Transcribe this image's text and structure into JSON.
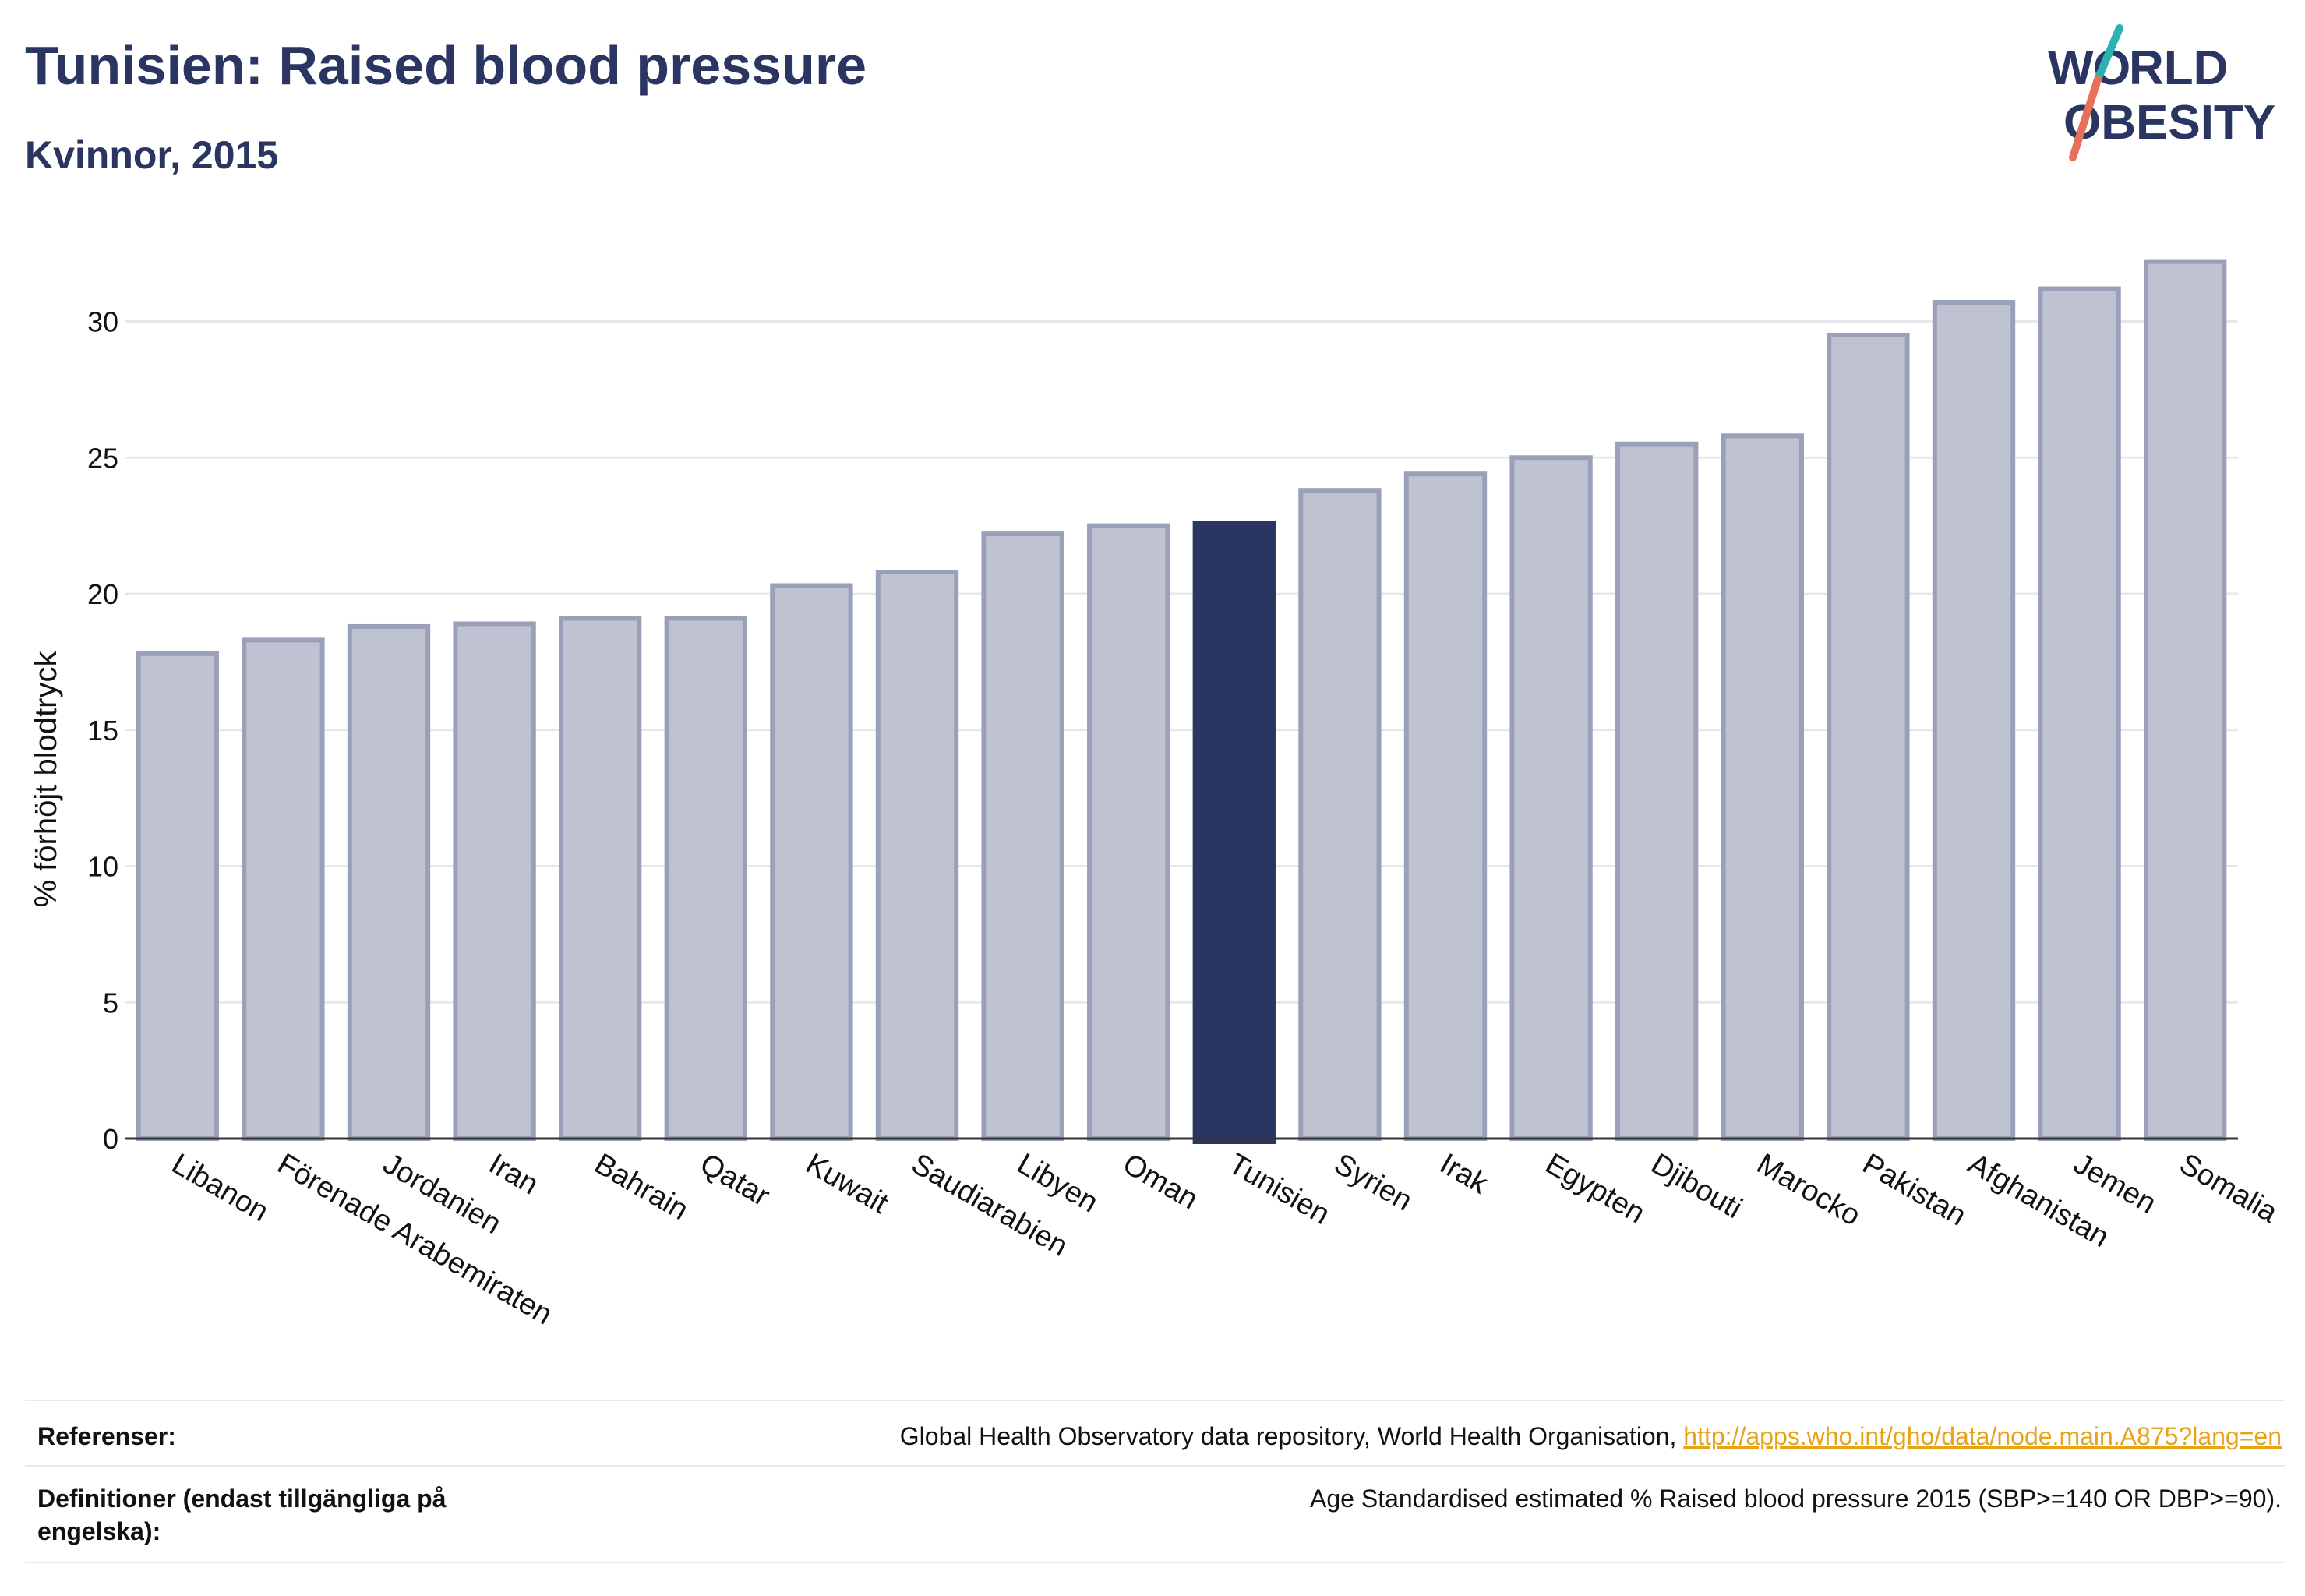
{
  "header": {
    "title": "Tunisien: Raised blood pressure",
    "subtitle": "Kvinnor, 2015",
    "logo_text": "WORLD OBESITY"
  },
  "colors": {
    "title": "#2b3562",
    "bar_fill": "#bfc3d1",
    "bar_stroke": "#9aa0b8",
    "highlight": "#2b3562",
    "grid": "#e6e8ee",
    "axis": "#333333",
    "logo_teal": "#2bb3b1",
    "logo_coral": "#e8705a"
  },
  "chart_data": {
    "type": "bar",
    "categories": [
      "Libanon",
      "Förenade Arabemiraten",
      "Jordanien",
      "Iran",
      "Bahrain",
      "Qatar",
      "Kuwait",
      "Saudiarabien",
      "Libyen",
      "Oman",
      "Tunisien",
      "Syrien",
      "Irak",
      "Egypten",
      "Djibouti",
      "Marocko",
      "Pakistan",
      "Afghanistan",
      "Jemen",
      "Somalia"
    ],
    "values": [
      17.8,
      18.3,
      18.8,
      18.9,
      19.1,
      19.1,
      20.3,
      20.8,
      22.2,
      22.5,
      22.6,
      23.8,
      24.4,
      25.0,
      25.5,
      25.8,
      29.5,
      30.7,
      31.2,
      32.2
    ],
    "highlight": "Tunisien",
    "ylabel": "% förhöjt blodtryck",
    "ylim": [
      0,
      33
    ],
    "yticks": [
      0,
      5,
      10,
      15,
      20,
      25,
      30
    ],
    "grid": true
  },
  "footer": {
    "references_label": "Referenser:",
    "references_text": "Global Health Observatory data repository, World Health Organisation, ",
    "references_link": "http://apps.who.int/gho/data/node.main.A875?lang=en",
    "definitions_label": "Definitioner (endast tillgängliga på engelska):",
    "definitions_text": "Age Standardised estimated % Raised blood pressure 2015 (SBP>=140 OR DBP>=90)."
  }
}
